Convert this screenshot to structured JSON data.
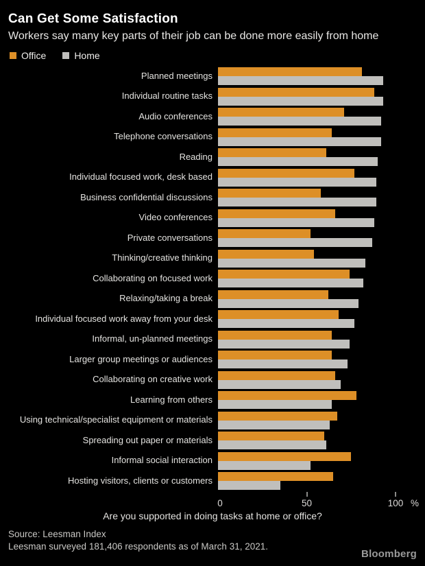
{
  "title": "Can Get Some Satisfaction",
  "subtitle": "Workers say many key parts of their job can be done more easily from home",
  "legend": {
    "office_label": "Office",
    "home_label": "Home"
  },
  "colors": {
    "background": "#000000",
    "office": "#dd8f27",
    "home": "#c0bfbc",
    "title_text": "#ffffff",
    "body_text": "#e4e3e0",
    "source_text": "#c9c8c5",
    "tick": "#8a8a88",
    "brand_text": "#9a9a9a"
  },
  "chart_data": {
    "type": "bar",
    "orientation": "horizontal",
    "title": "Can Get Some Satisfaction",
    "subtitle": "Workers say many key parts of their job can be done more easily from home",
    "xlabel": "Are you supported in doing tasks at home or office?",
    "ylabel": "",
    "xlim": [
      0,
      100
    ],
    "x_ticks": [
      0,
      50,
      100
    ],
    "x_tick_labels": [
      "0",
      "50",
      "100"
    ],
    "x_unit": "%",
    "grid": false,
    "legend_position": "top-left",
    "categories": [
      "Planned meetings",
      "Individual routine tasks",
      "Audio conferences",
      "Telephone conversations",
      "Reading",
      "Individual focused work, desk based",
      "Business confidential discussions",
      "Video conferences",
      "Private conversations",
      "Thinking/creative thinking",
      "Collaborating on focused work",
      "Relaxing/taking a break",
      "Individual focused work away from your desk",
      "Informal, un-planned meetings",
      "Larger group meetings or audiences",
      "Collaborating on creative work",
      "Learning from others",
      "Using technical/specialist equipment or materials",
      "Spreading out paper or materials",
      "Informal social interaction",
      "Hosting visitors, clients or customers"
    ],
    "series": [
      {
        "name": "Office",
        "color": "#dd8f27",
        "values": [
          81,
          88,
          71,
          64,
          61,
          77,
          58,
          66,
          52,
          54,
          74,
          62,
          68,
          64,
          64,
          66,
          78,
          67,
          60,
          75,
          65
        ]
      },
      {
        "name": "Home",
        "color": "#c0bfbc",
        "values": [
          93,
          93,
          92,
          92,
          90,
          89,
          89,
          88,
          87,
          83,
          82,
          79,
          77,
          74,
          73,
          69,
          64,
          63,
          61,
          52,
          35
        ]
      }
    ]
  },
  "footer": {
    "question": "Are you supported in doing tasks at home or office?",
    "source_line1": "Source: Leesman Index",
    "source_line2": "Leesman surveyed 181,406 respondents as of March 31, 2021.",
    "brand": "Bloomberg"
  }
}
